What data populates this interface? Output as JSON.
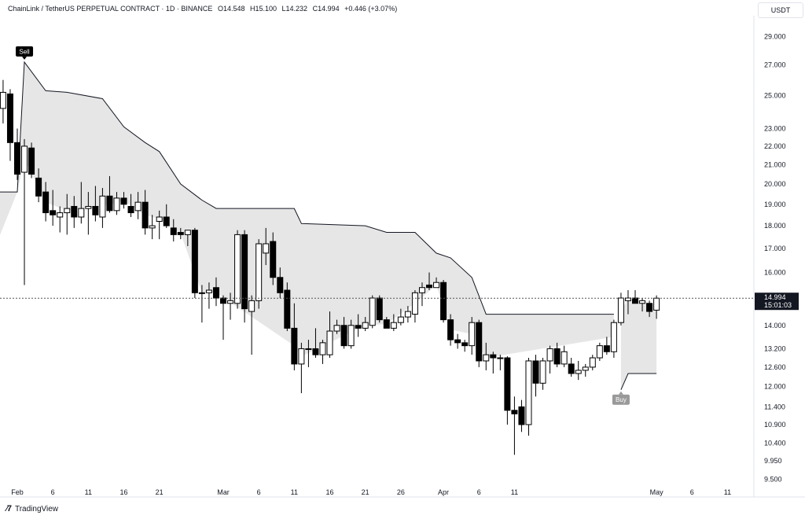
{
  "header": {
    "symbol": "ChainLink / TetherUS PERPETUAL CONTRACT · 1D · BINANCE",
    "open": "O14.548",
    "high": "H15.100",
    "low": "L14.232",
    "close": "C14.994",
    "change": "+0.446 (+3.07%)"
  },
  "currency_label": "USDT",
  "footer": {
    "brand": "TradingView"
  },
  "colors": {
    "up": "#ffffff",
    "down": "#000000",
    "band_fill": "#e6e6e6",
    "line": "#131722",
    "signal_bg": "#000000",
    "buy_bg": "#999999"
  },
  "chart_data": {
    "type": "candlestick",
    "y_scale": "log",
    "ylim": [
      9.3,
      31.0
    ],
    "yticks": [
      29.0,
      27.0,
      25.0,
      23.0,
      22.0,
      21.0,
      20.0,
      19.0,
      18.0,
      17.0,
      16.0,
      14.0,
      13.2,
      12.6,
      12.0,
      11.4,
      10.9,
      10.4,
      9.95,
      9.5
    ],
    "ytick_labels": [
      "29.000",
      "27.000",
      "25.000",
      "23.000",
      "22.000",
      "21.000",
      "20.000",
      "19.000",
      "18.000",
      "17.000",
      "16.000",
      "14.000",
      "13.200",
      "12.600",
      "12.000",
      "11.400",
      "10.900",
      "10.400",
      "9.950",
      "9.500"
    ],
    "x_tick_labels": [
      {
        "date": "2024-02-01",
        "label": "Feb"
      },
      {
        "date": "2024-02-06",
        "label": "6"
      },
      {
        "date": "2024-02-11",
        "label": "11"
      },
      {
        "date": "2024-02-16",
        "label": "16"
      },
      {
        "date": "2024-02-21",
        "label": "21"
      },
      {
        "date": "2024-03-01",
        "label": "Mar"
      },
      {
        "date": "2024-03-06",
        "label": "6"
      },
      {
        "date": "2024-03-11",
        "label": "11"
      },
      {
        "date": "2024-03-16",
        "label": "16"
      },
      {
        "date": "2024-03-21",
        "label": "21"
      },
      {
        "date": "2024-03-26",
        "label": "26"
      },
      {
        "date": "2024-04-01",
        "label": "Apr"
      },
      {
        "date": "2024-04-06",
        "label": "6"
      },
      {
        "date": "2024-04-11",
        "label": "11"
      },
      {
        "date": "2024-05-01",
        "label": "May"
      },
      {
        "date": "2024-05-06",
        "label": "6"
      },
      {
        "date": "2024-05-11",
        "label": "11"
      }
    ],
    "last_price": {
      "value": 14.994,
      "label": "14.994",
      "countdown": "15:01:03"
    },
    "candles": [
      {
        "date": "2024-01-30",
        "o": 24.2,
        "h": 26.0,
        "l": 23.3,
        "c": 25.2
      },
      {
        "date": "2024-01-31",
        "o": 25.1,
        "h": 25.4,
        "l": 21.2,
        "c": 22.2
      },
      {
        "date": "2024-02-01",
        "o": 22.2,
        "h": 23.0,
        "l": 20.2,
        "c": 20.5
      },
      {
        "date": "2024-02-02",
        "o": 20.6,
        "h": 22.4,
        "l": 15.5,
        "c": 22.0
      },
      {
        "date": "2024-02-03",
        "o": 21.9,
        "h": 22.2,
        "l": 20.3,
        "c": 20.5
      },
      {
        "date": "2024-02-04",
        "o": 20.3,
        "h": 20.8,
        "l": 19.1,
        "c": 19.4
      },
      {
        "date": "2024-02-05",
        "o": 19.6,
        "h": 20.1,
        "l": 18.2,
        "c": 18.6
      },
      {
        "date": "2024-02-06",
        "o": 18.7,
        "h": 19.7,
        "l": 18.0,
        "c": 18.5
      },
      {
        "date": "2024-02-07",
        "o": 18.4,
        "h": 18.9,
        "l": 17.7,
        "c": 18.6
      },
      {
        "date": "2024-02-08",
        "o": 18.6,
        "h": 19.5,
        "l": 17.6,
        "c": 18.8
      },
      {
        "date": "2024-02-09",
        "o": 18.9,
        "h": 19.4,
        "l": 17.9,
        "c": 18.4
      },
      {
        "date": "2024-02-10",
        "o": 18.4,
        "h": 20.1,
        "l": 18.1,
        "c": 18.8
      },
      {
        "date": "2024-02-11",
        "o": 18.8,
        "h": 19.6,
        "l": 17.6,
        "c": 18.9
      },
      {
        "date": "2024-02-12",
        "o": 18.9,
        "h": 19.9,
        "l": 18.2,
        "c": 18.5
      },
      {
        "date": "2024-02-13",
        "o": 18.4,
        "h": 19.8,
        "l": 17.9,
        "c": 19.4
      },
      {
        "date": "2024-02-14",
        "o": 19.4,
        "h": 20.4,
        "l": 18.6,
        "c": 18.7
      },
      {
        "date": "2024-02-15",
        "o": 18.7,
        "h": 19.6,
        "l": 18.5,
        "c": 19.3
      },
      {
        "date": "2024-02-16",
        "o": 19.3,
        "h": 19.6,
        "l": 18.8,
        "c": 19.0
      },
      {
        "date": "2024-02-17",
        "o": 18.9,
        "h": 19.5,
        "l": 18.4,
        "c": 18.6
      },
      {
        "date": "2024-02-18",
        "o": 18.7,
        "h": 19.6,
        "l": 18.3,
        "c": 19.1
      },
      {
        "date": "2024-02-19",
        "o": 19.1,
        "h": 19.7,
        "l": 17.6,
        "c": 17.9
      },
      {
        "date": "2024-02-20",
        "o": 17.9,
        "h": 18.5,
        "l": 17.4,
        "c": 18.0
      },
      {
        "date": "2024-02-21",
        "o": 18.2,
        "h": 18.7,
        "l": 17.4,
        "c": 18.4
      },
      {
        "date": "2024-02-22",
        "o": 18.4,
        "h": 19.0,
        "l": 17.9,
        "c": 18.0
      },
      {
        "date": "2024-02-23",
        "o": 17.9,
        "h": 18.3,
        "l": 17.3,
        "c": 17.6
      },
      {
        "date": "2024-02-24",
        "o": 17.7,
        "h": 17.9,
        "l": 17.4,
        "c": 17.6
      },
      {
        "date": "2024-02-25",
        "o": 17.6,
        "h": 17.7,
        "l": 17.1,
        "c": 17.8
      },
      {
        "date": "2024-02-26",
        "o": 17.8,
        "h": 17.9,
        "l": 15.0,
        "c": 15.2
      },
      {
        "date": "2024-02-27",
        "o": 15.2,
        "h": 15.5,
        "l": 14.1,
        "c": 15.2
      },
      {
        "date": "2024-02-28",
        "o": 15.2,
        "h": 15.6,
        "l": 14.6,
        "c": 15.3
      },
      {
        "date": "2024-02-29",
        "o": 15.4,
        "h": 15.8,
        "l": 14.7,
        "c": 15.0
      },
      {
        "date": "2024-03-01",
        "o": 15.0,
        "h": 15.1,
        "l": 13.5,
        "c": 14.8
      },
      {
        "date": "2024-03-02",
        "o": 14.8,
        "h": 15.2,
        "l": 14.2,
        "c": 14.9
      },
      {
        "date": "2024-03-03",
        "o": 14.8,
        "h": 17.8,
        "l": 14.6,
        "c": 17.6
      },
      {
        "date": "2024-03-04",
        "o": 17.6,
        "h": 17.8,
        "l": 14.1,
        "c": 14.6
      },
      {
        "date": "2024-03-05",
        "o": 14.5,
        "h": 15.1,
        "l": 13.0,
        "c": 14.9
      },
      {
        "date": "2024-03-06",
        "o": 14.9,
        "h": 17.4,
        "l": 14.6,
        "c": 17.2
      },
      {
        "date": "2024-03-07",
        "o": 16.8,
        "h": 17.9,
        "l": 16.3,
        "c": 17.2
      },
      {
        "date": "2024-03-08",
        "o": 17.3,
        "h": 17.7,
        "l": 15.5,
        "c": 15.8
      },
      {
        "date": "2024-03-09",
        "o": 15.8,
        "h": 16.2,
        "l": 15.0,
        "c": 15.2
      },
      {
        "date": "2024-03-10",
        "o": 15.3,
        "h": 15.6,
        "l": 13.8,
        "c": 13.9
      },
      {
        "date": "2024-03-11",
        "o": 13.9,
        "h": 14.8,
        "l": 12.5,
        "c": 12.7
      },
      {
        "date": "2024-03-12",
        "o": 12.7,
        "h": 13.4,
        "l": 11.8,
        "c": 13.2
      },
      {
        "date": "2024-03-13",
        "o": 13.2,
        "h": 13.5,
        "l": 12.6,
        "c": 13.2
      },
      {
        "date": "2024-03-14",
        "o": 13.2,
        "h": 13.9,
        "l": 12.9,
        "c": 13.0
      },
      {
        "date": "2024-03-15",
        "o": 13.0,
        "h": 13.5,
        "l": 12.7,
        "c": 13.4
      },
      {
        "date": "2024-03-16",
        "o": 13.0,
        "h": 14.5,
        "l": 12.9,
        "c": 13.8
      },
      {
        "date": "2024-03-17",
        "o": 13.8,
        "h": 14.2,
        "l": 13.7,
        "c": 14.0
      },
      {
        "date": "2024-03-18",
        "o": 14.0,
        "h": 14.3,
        "l": 13.2,
        "c": 13.3
      },
      {
        "date": "2024-03-19",
        "o": 13.3,
        "h": 14.2,
        "l": 13.2,
        "c": 14.0
      },
      {
        "date": "2024-03-20",
        "o": 14.0,
        "h": 14.4,
        "l": 13.6,
        "c": 13.9
      },
      {
        "date": "2024-03-21",
        "o": 13.9,
        "h": 14.3,
        "l": 13.8,
        "c": 14.1
      },
      {
        "date": "2024-03-22",
        "o": 14.0,
        "h": 15.1,
        "l": 13.9,
        "c": 15.0
      },
      {
        "date": "2024-03-23",
        "o": 15.0,
        "h": 15.1,
        "l": 14.1,
        "c": 14.2
      },
      {
        "date": "2024-03-24",
        "o": 14.2,
        "h": 14.3,
        "l": 13.9,
        "c": 13.9
      },
      {
        "date": "2024-03-25",
        "o": 13.9,
        "h": 14.4,
        "l": 13.8,
        "c": 14.1
      },
      {
        "date": "2024-03-26",
        "o": 14.1,
        "h": 14.6,
        "l": 14.0,
        "c": 14.3
      },
      {
        "date": "2024-03-27",
        "o": 14.3,
        "h": 14.7,
        "l": 14.1,
        "c": 14.5
      },
      {
        "date": "2024-03-28",
        "o": 14.4,
        "h": 15.3,
        "l": 14.1,
        "c": 15.2
      },
      {
        "date": "2024-03-29",
        "o": 15.2,
        "h": 15.6,
        "l": 14.7,
        "c": 15.4
      },
      {
        "date": "2024-03-30",
        "o": 15.5,
        "h": 16.0,
        "l": 15.3,
        "c": 15.4
      },
      {
        "date": "2024-03-31",
        "o": 15.4,
        "h": 15.8,
        "l": 15.4,
        "c": 15.6
      },
      {
        "date": "2024-04-01",
        "o": 15.6,
        "h": 15.7,
        "l": 14.1,
        "c": 14.2
      },
      {
        "date": "2024-04-02",
        "o": 14.2,
        "h": 14.4,
        "l": 13.3,
        "c": 13.5
      },
      {
        "date": "2024-04-03",
        "o": 13.5,
        "h": 13.7,
        "l": 13.2,
        "c": 13.4
      },
      {
        "date": "2024-04-04",
        "o": 13.4,
        "h": 13.5,
        "l": 13.1,
        "c": 13.3
      },
      {
        "date": "2024-04-05",
        "o": 13.3,
        "h": 14.3,
        "l": 13.0,
        "c": 14.1
      },
      {
        "date": "2024-04-06",
        "o": 14.1,
        "h": 14.2,
        "l": 12.6,
        "c": 12.8
      },
      {
        "date": "2024-04-07",
        "o": 12.8,
        "h": 13.4,
        "l": 12.5,
        "c": 13.0
      },
      {
        "date": "2024-04-08",
        "o": 13.0,
        "h": 13.1,
        "l": 12.4,
        "c": 12.9
      },
      {
        "date": "2024-04-09",
        "o": 12.9,
        "h": 13.0,
        "l": 12.5,
        "c": 12.9
      },
      {
        "date": "2024-04-10",
        "o": 12.9,
        "h": 12.95,
        "l": 10.9,
        "c": 11.3
      },
      {
        "date": "2024-04-11",
        "o": 11.3,
        "h": 11.7,
        "l": 10.1,
        "c": 11.2
      },
      {
        "date": "2024-04-12",
        "o": 11.4,
        "h": 11.6,
        "l": 10.7,
        "c": 10.9
      },
      {
        "date": "2024-04-13",
        "o": 10.9,
        "h": 12.9,
        "l": 10.6,
        "c": 12.8
      },
      {
        "date": "2024-04-14",
        "o": 12.8,
        "h": 13.0,
        "l": 11.7,
        "c": 12.1
      },
      {
        "date": "2024-04-15",
        "o": 12.1,
        "h": 12.9,
        "l": 11.9,
        "c": 12.8
      },
      {
        "date": "2024-04-16",
        "o": 12.8,
        "h": 13.3,
        "l": 12.4,
        "c": 13.2
      },
      {
        "date": "2024-04-17",
        "o": 13.2,
        "h": 13.4,
        "l": 12.6,
        "c": 12.7
      },
      {
        "date": "2024-04-18",
        "o": 12.7,
        "h": 13.3,
        "l": 12.6,
        "c": 13.1
      },
      {
        "date": "2024-04-19",
        "o": 12.7,
        "h": 12.9,
        "l": 12.3,
        "c": 12.4
      },
      {
        "date": "2024-04-20",
        "o": 12.4,
        "h": 12.8,
        "l": 12.2,
        "c": 12.5
      },
      {
        "date": "2024-04-21",
        "o": 12.5,
        "h": 12.7,
        "l": 12.3,
        "c": 12.6
      },
      {
        "date": "2024-04-22",
        "o": 12.6,
        "h": 13.0,
        "l": 12.5,
        "c": 12.9
      },
      {
        "date": "2024-04-23",
        "o": 12.9,
        "h": 13.4,
        "l": 12.8,
        "c": 13.3
      },
      {
        "date": "2024-04-24",
        "o": 13.3,
        "h": 13.6,
        "l": 13.0,
        "c": 13.1
      },
      {
        "date": "2024-04-25",
        "o": 13.1,
        "h": 14.2,
        "l": 12.9,
        "c": 14.1
      },
      {
        "date": "2024-04-26",
        "o": 14.1,
        "h": 15.2,
        "l": 14.0,
        "c": 15.0
      },
      {
        "date": "2024-04-27",
        "o": 14.9,
        "h": 15.3,
        "l": 14.4,
        "c": 15.0
      },
      {
        "date": "2024-04-28",
        "o": 15.0,
        "h": 15.3,
        "l": 14.8,
        "c": 14.8
      },
      {
        "date": "2024-04-29",
        "o": 14.8,
        "h": 15.0,
        "l": 14.5,
        "c": 14.9
      },
      {
        "date": "2024-04-30",
        "o": 14.8,
        "h": 14.9,
        "l": 14.3,
        "c": 14.5
      },
      {
        "date": "2024-05-01",
        "o": 14.548,
        "h": 15.1,
        "l": 14.232,
        "c": 14.994
      }
    ],
    "supertrend_down": [
      {
        "date": "2024-01-27",
        "v": 19.6
      },
      {
        "date": "2024-02-01",
        "v": 19.6
      },
      {
        "date": "2024-02-02",
        "v": 27.2
      },
      {
        "date": "2024-02-05",
        "v": 25.3
      },
      {
        "date": "2024-02-08",
        "v": 25.2
      },
      {
        "date": "2024-02-13",
        "v": 24.8
      },
      {
        "date": "2024-02-16",
        "v": 23.1
      },
      {
        "date": "2024-02-19",
        "v": 22.2
      },
      {
        "date": "2024-02-21",
        "v": 21.7
      },
      {
        "date": "2024-02-24",
        "v": 20.0
      },
      {
        "date": "2024-02-27",
        "v": 19.2
      },
      {
        "date": "2024-02-29",
        "v": 18.8
      },
      {
        "date": "2024-03-11",
        "v": 18.8
      },
      {
        "date": "2024-03-12",
        "v": 18.1
      },
      {
        "date": "2024-03-21",
        "v": 18.0
      },
      {
        "date": "2024-03-24",
        "v": 17.7
      },
      {
        "date": "2024-03-28",
        "v": 17.7
      },
      {
        "date": "2024-03-31",
        "v": 16.8
      },
      {
        "date": "2024-04-02",
        "v": 16.6
      },
      {
        "date": "2024-04-05",
        "v": 15.8
      },
      {
        "date": "2024-04-07",
        "v": 14.4
      },
      {
        "date": "2024-04-25",
        "v": 14.4
      }
    ],
    "supertrend_up": [
      {
        "date": "2024-04-26",
        "v": 11.9
      },
      {
        "date": "2024-04-27",
        "v": 12.4
      },
      {
        "date": "2024-05-01",
        "v": 12.4
      }
    ],
    "signals": [
      {
        "type": "Sell",
        "date": "2024-02-02",
        "value": 27.2
      },
      {
        "type": "Buy",
        "date": "2024-04-26",
        "value": 11.9
      }
    ]
  }
}
